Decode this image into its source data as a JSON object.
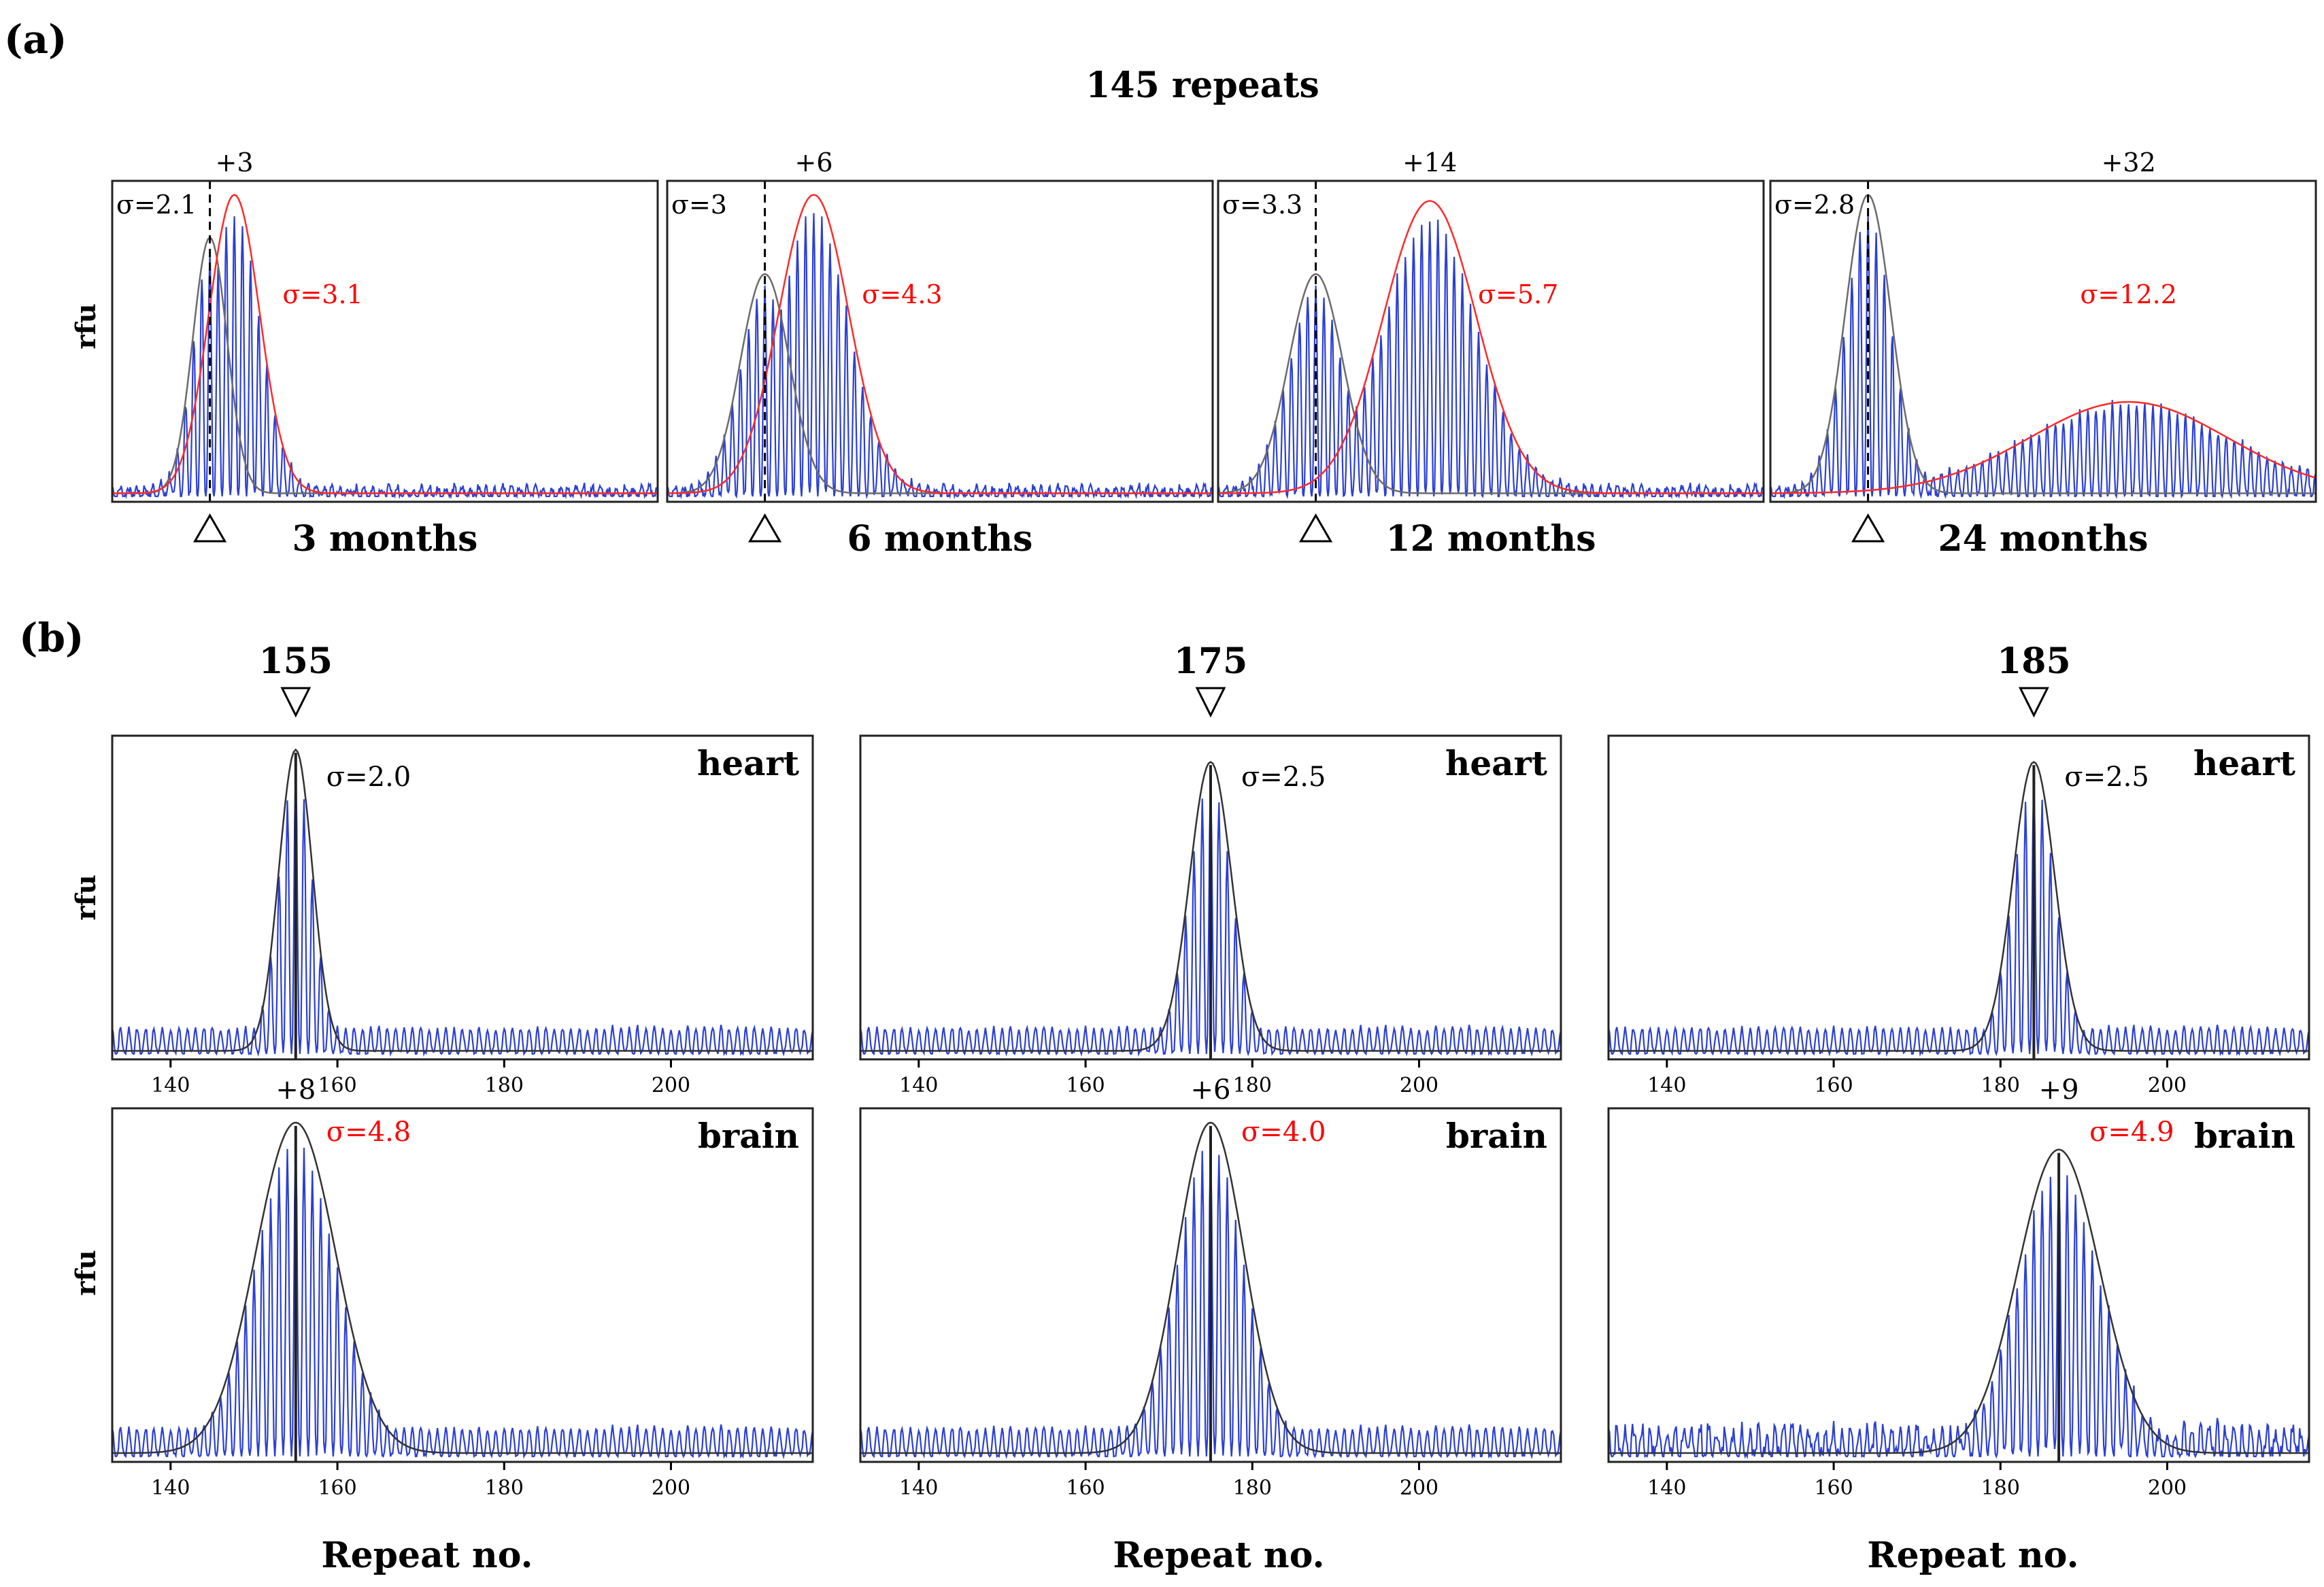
{
  "figure": {
    "panel_a_label": "(a)",
    "panel_b_label": "(b)",
    "panel_a_title": "145 repeats",
    "ylabel": "rfu",
    "xlabel": "Repeat no."
  },
  "colors": {
    "trace": "#2b3fd6",
    "trace_dark": "#0a1a8c",
    "fit_initial": "#6b6b6b",
    "fit_shifted": "#ff2a2a",
    "sigma_red": "#ff0000",
    "frame": "#222222",
    "text": "#000000"
  },
  "chart_data": [
    {
      "type": "line",
      "panel": "a",
      "title": "3 months",
      "shift_label": "+3",
      "initial_sigma_label": "σ=2.1",
      "expanded_sigma_label": "σ=3.1",
      "initial": {
        "mode": 145,
        "sigma": 2.1,
        "peak": 0.84
      },
      "expanded": {
        "mode": 148,
        "sigma": 3.1,
        "peak": 0.98
      },
      "xlim": [
        133,
        200
      ]
    },
    {
      "type": "line",
      "panel": "a",
      "title": "6 months",
      "shift_label": "+6",
      "initial_sigma_label": "σ=3",
      "expanded_sigma_label": "σ=4.3",
      "initial": {
        "mode": 145,
        "sigma": 3.0,
        "peak": 0.72
      },
      "expanded": {
        "mode": 151,
        "sigma": 4.3,
        "peak": 0.98
      },
      "xlim": [
        133,
        200
      ]
    },
    {
      "type": "line",
      "panel": "a",
      "title": "12 months",
      "shift_label": "+14",
      "initial_sigma_label": "σ=3.3",
      "expanded_sigma_label": "σ=5.7",
      "initial": {
        "mode": 145,
        "sigma": 3.3,
        "peak": 0.72
      },
      "expanded": {
        "mode": 159,
        "sigma": 5.7,
        "peak": 0.96
      },
      "xlim": [
        133,
        200
      ]
    },
    {
      "type": "line",
      "panel": "a",
      "title": "24 months",
      "shift_label": "+32",
      "initial_sigma_label": "σ=2.8",
      "expanded_sigma_label": "σ=12.2",
      "initial": {
        "mode": 145,
        "sigma": 2.8,
        "peak": 0.98
      },
      "expanded": {
        "mode": 177,
        "sigma": 12.2,
        "peak": 0.3
      },
      "xlim": [
        133,
        200
      ]
    },
    {
      "type": "line",
      "panel": "b",
      "column_label": "155",
      "tissue": "heart",
      "sigma_label": "σ=2.0",
      "shift_label": "",
      "mode": 155,
      "sigma": 2.0,
      "peak": 0.98,
      "xlim": [
        133,
        217
      ],
      "xticks": [
        140,
        160,
        180,
        200
      ]
    },
    {
      "type": "line",
      "panel": "b",
      "column_label": "175",
      "tissue": "heart",
      "sigma_label": "σ=2.5",
      "shift_label": "",
      "mode": 175,
      "sigma": 2.5,
      "peak": 0.94,
      "xlim": [
        133,
        217
      ],
      "xticks": [
        140,
        160,
        180,
        200
      ]
    },
    {
      "type": "line",
      "panel": "b",
      "column_label": "185",
      "tissue": "heart",
      "sigma_label": "σ=2.5",
      "shift_label": "",
      "mode": 184,
      "sigma": 2.5,
      "peak": 0.94,
      "xlim": [
        133,
        217
      ],
      "xticks": [
        140,
        160,
        180,
        200
      ]
    },
    {
      "type": "line",
      "panel": "b",
      "column_label": "",
      "tissue": "brain",
      "sigma_label": "σ=4.8",
      "shift_label": "+8",
      "mode": 155,
      "sigma": 4.8,
      "peak": 0.98,
      "xlim": [
        133,
        217
      ],
      "xticks": [
        140,
        160,
        180,
        200
      ]
    },
    {
      "type": "line",
      "panel": "b",
      "column_label": "",
      "tissue": "brain",
      "sigma_label": "σ=4.0",
      "shift_label": "+6",
      "mode": 175,
      "sigma": 4.0,
      "peak": 0.98,
      "xlim": [
        133,
        217
      ],
      "xticks": [
        140,
        160,
        180,
        200
      ]
    },
    {
      "type": "line",
      "panel": "b",
      "column_label": "",
      "tissue": "brain",
      "sigma_label": "σ=4.9",
      "shift_label": "+9",
      "mode": 187,
      "sigma": 4.9,
      "peak": 0.9,
      "xlim": [
        133,
        217
      ],
      "xticks": [
        140,
        160,
        180,
        200
      ]
    }
  ]
}
